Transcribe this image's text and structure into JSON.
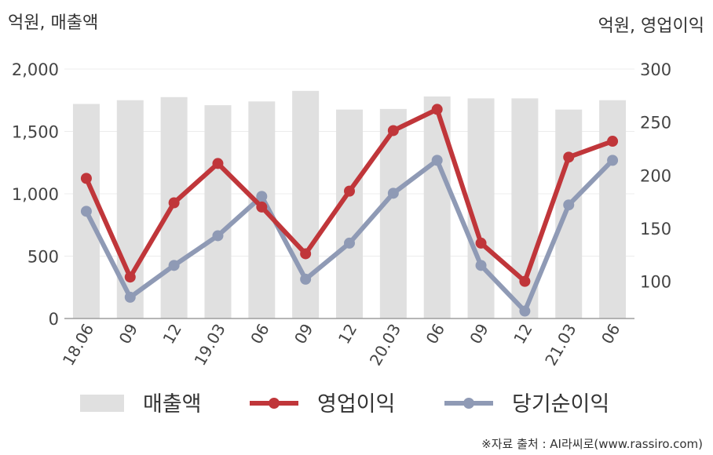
{
  "chart_data": {
    "type": "bar+line",
    "y_left_title": "억원, 매출액",
    "y_right_title": "억원, 영업이익",
    "categories": [
      "18.06",
      "09",
      "12",
      "19.03",
      "06",
      "09",
      "12",
      "20.03",
      "06",
      "09",
      "12",
      "21.03",
      "06"
    ],
    "y_left_ticks": [
      "2,000",
      "1,500",
      "1,000",
      "500",
      "0"
    ],
    "y_left_range": [
      0,
      2000
    ],
    "y_right_ticks": [
      "300",
      "250",
      "200",
      "150",
      "100"
    ],
    "y_right_range": [
      65,
      300
    ],
    "series": [
      {
        "name": "매출액",
        "type": "bar",
        "axis": "left",
        "color": "#e0e0e0",
        "values": [
          1720,
          1750,
          1775,
          1710,
          1740,
          1825,
          1675,
          1680,
          1780,
          1765,
          1765,
          1675,
          1750
        ]
      },
      {
        "name": "영업이익",
        "type": "line",
        "axis": "right",
        "color": "#c0363a",
        "values": [
          197,
          104,
          174,
          211,
          170,
          126,
          185,
          242,
          262,
          136,
          100,
          217,
          232
        ]
      },
      {
        "name": "당기순이익",
        "type": "line",
        "axis": "right",
        "color": "#8f9ab5",
        "values": [
          166,
          85,
          115,
          143,
          180,
          102,
          136,
          183,
          214,
          115,
          72,
          172,
          214
        ]
      }
    ],
    "grid": true,
    "legend_position": "bottom"
  },
  "source_note": "※자료 출처 : AI라씨로(www.rassiro.com)"
}
